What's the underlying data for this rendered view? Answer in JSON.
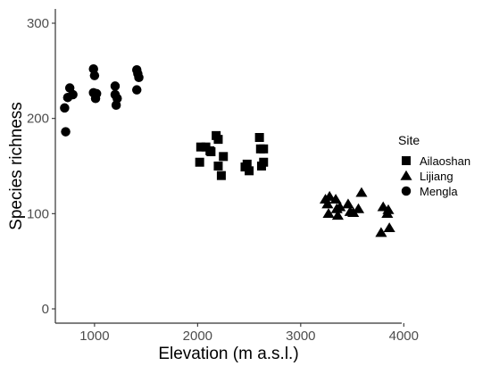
{
  "chart_data": {
    "type": "scatter",
    "title": "",
    "xlabel": "Elevation (m a.s.l.)",
    "ylabel": "Species richness",
    "xlim": [
      620,
      3980
    ],
    "ylim": [
      -15,
      315
    ],
    "x_ticks": [
      1000,
      2000,
      3000,
      4000
    ],
    "y_ticks": [
      0,
      100,
      200,
      300
    ],
    "x_tick_labels": [
      "1000",
      "2000",
      "3000",
      "4000"
    ],
    "y_tick_labels": [
      "0",
      "100",
      "200",
      "300"
    ],
    "grid": false,
    "legend": {
      "title": "Site",
      "placement": "right"
    },
    "series": [
      {
        "name": "Ailaoshan",
        "marker": "square",
        "color": "#000000",
        "points": [
          [
            2020,
            154
          ],
          [
            2030,
            170
          ],
          [
            2080,
            170
          ],
          [
            2120,
            166
          ],
          [
            2130,
            165
          ],
          [
            2180,
            182
          ],
          [
            2200,
            178
          ],
          [
            2200,
            150
          ],
          [
            2230,
            140
          ],
          [
            2250,
            160
          ],
          [
            2460,
            149
          ],
          [
            2480,
            152
          ],
          [
            2500,
            145
          ],
          [
            2600,
            180
          ],
          [
            2610,
            168
          ],
          [
            2620,
            150
          ],
          [
            2640,
            168
          ],
          [
            2640,
            154
          ]
        ]
      },
      {
        "name": "Lijiang",
        "marker": "triangle",
        "color": "#000000",
        "points": [
          [
            3240,
            115
          ],
          [
            3260,
            110
          ],
          [
            3280,
            118
          ],
          [
            3270,
            100
          ],
          [
            3340,
            115
          ],
          [
            3350,
            105
          ],
          [
            3360,
            98
          ],
          [
            3380,
            107
          ],
          [
            3460,
            110
          ],
          [
            3480,
            102
          ],
          [
            3510,
            101
          ],
          [
            3560,
            105
          ],
          [
            3590,
            122
          ],
          [
            3780,
            80
          ],
          [
            3800,
            107
          ],
          [
            3840,
            100
          ],
          [
            3850,
            104
          ],
          [
            3860,
            85
          ]
        ]
      },
      {
        "name": "Mengla",
        "marker": "circle",
        "color": "#000000",
        "points": [
          [
            710,
            211
          ],
          [
            720,
            186
          ],
          [
            740,
            222
          ],
          [
            760,
            232
          ],
          [
            790,
            225
          ],
          [
            990,
            252
          ],
          [
            990,
            227
          ],
          [
            1000,
            245
          ],
          [
            1010,
            221
          ],
          [
            1020,
            226
          ],
          [
            1200,
            234
          ],
          [
            1200,
            225
          ],
          [
            1210,
            214
          ],
          [
            1220,
            221
          ],
          [
            1410,
            251
          ],
          [
            1410,
            230
          ],
          [
            1420,
            247
          ],
          [
            1430,
            243
          ]
        ]
      }
    ]
  }
}
